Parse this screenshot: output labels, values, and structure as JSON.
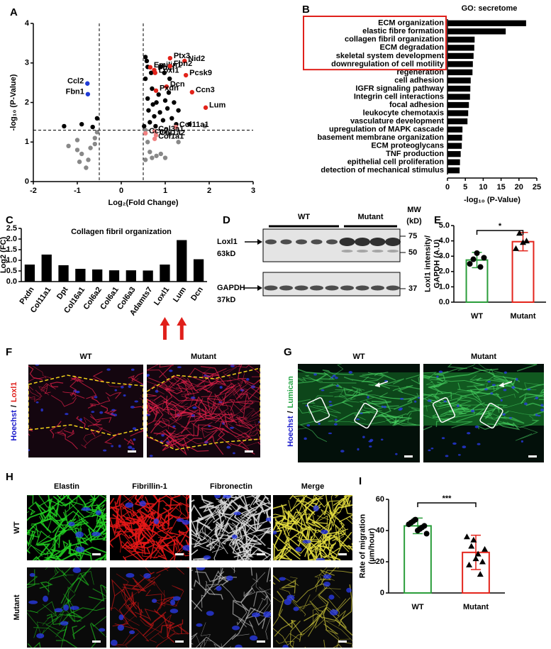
{
  "panels": {
    "letters": [
      "A",
      "B",
      "C",
      "D",
      "E",
      "F",
      "G",
      "H",
      "I"
    ]
  },
  "chart_data": [
    {
      "type": "scatter",
      "xlabel": "Log₂(Fold Change)",
      "ylabel": "-log₁₀ (P-Value)",
      "xlim": [
        -2,
        3
      ],
      "xticks": [
        -2,
        -1,
        0,
        1,
        2,
        3
      ],
      "ylim": [
        0,
        4
      ],
      "yticks": [
        0,
        1,
        2,
        3,
        4
      ],
      "threshold_x": [
        -0.5,
        0.5
      ],
      "threshold_y": 1.3,
      "series": [
        {
          "color": "#000000",
          "x": [
            0.55,
            0.6,
            0.62,
            0.65,
            0.7,
            0.72,
            0.75,
            0.8,
            0.85,
            0.88,
            0.9,
            0.95,
            1.0,
            1.05,
            1.1,
            1.15,
            1.2,
            1.25,
            1.3,
            0.58,
            0.68,
            0.98,
            1.08,
            0.52,
            0.78,
            0.6,
            -1.3,
            -0.55,
            -0.9,
            -0.65,
            0.55,
            1.55
          ],
          "y": [
            2.6,
            2.1,
            1.8,
            1.5,
            2.35,
            1.95,
            1.65,
            2.0,
            2.2,
            1.75,
            2.9,
            1.55,
            2.05,
            1.85,
            2.6,
            1.6,
            2.0,
            1.45,
            1.8,
            3.05,
            2.75,
            2.75,
            2.25,
            1.4,
            1.4,
            2.9,
            1.4,
            1.6,
            1.45,
            1.38,
            3.15,
            1.45
          ]
        },
        {
          "color": "#888888",
          "x": [
            -0.6,
            -0.7,
            -0.75,
            -0.8,
            -0.9,
            -1.0,
            -0.6,
            -1.2,
            -0.55,
            -1.0,
            0.55,
            0.6,
            0.65,
            0.7,
            0.8,
            0.9,
            1.0,
            1.3,
            1.9,
            0.55,
            1.1,
            -0.95
          ],
          "y": [
            1.1,
            0.85,
            0.55,
            0.35,
            0.7,
            0.8,
            0.95,
            0.9,
            1.25,
            1.05,
            1.3,
            1.0,
            0.75,
            0.6,
            0.65,
            0.7,
            0.6,
            1.0,
            1.4,
            0.55,
            1.2,
            0.5
          ]
        },
        {
          "color": "#e2231a",
          "labels": [
            "Ptx3",
            "Nid2",
            "Emilin1",
            "Fbln",
            "Fbn2",
            "Loxl1",
            "Pcsk9",
            "Dcn",
            "Pxdn",
            "Ccn3",
            "Lum"
          ],
          "x": [
            1.11,
            1.44,
            0.66,
            0.75,
            1.11,
            0.77,
            1.47,
            1.03,
            0.79,
            1.61,
            1.92
          ],
          "y": [
            3.12,
            3.05,
            2.89,
            2.82,
            2.92,
            2.75,
            2.69,
            2.4,
            2.3,
            2.26,
            1.87
          ]
        },
        {
          "color": "#1f3bd6",
          "labels": [
            "Ccl2",
            "Fbn1"
          ],
          "x": [
            -0.77,
            -0.76
          ],
          "y": [
            2.48,
            2.21
          ]
        },
        {
          "color": "#f08080",
          "labels": [
            "Col11a1",
            "Col3a1",
            "Col1a2",
            "Col1a1",
            "Ccn2"
          ],
          "x": [
            1.24,
            0.76,
            0.79,
            0.76,
            0.55
          ],
          "y": [
            1.38,
            1.27,
            1.17,
            1.08,
            1.22
          ]
        }
      ]
    },
    {
      "type": "bar",
      "orientation": "horizontal",
      "title": "GO: secretome",
      "xlabel": "-log₁₀ (P-Value)",
      "xlim": [
        0,
        25
      ],
      "xticks": [
        0,
        5,
        10,
        15,
        20,
        25
      ],
      "color": "#000000",
      "highlight_rows": 6,
      "highlight_color": "#e0201b",
      "categories": [
        "ECM organization",
        "elastic fibre formation",
        "collagen fibril organization",
        "ECM degradation",
        "skeletal system development",
        "downregulation of cell motility",
        "regeneration",
        "cell adhesion",
        "IGFR signaling pathway",
        "Integrin cell interactions",
        "focal adhesion",
        "leukocyte chemotaxis",
        "vasculature development",
        "upregulation of MAPK cascade",
        "basement membrane organization",
        "ECM proteoglycans",
        "TNF production",
        "epithelial cell proliferation",
        "detection of mechanical stimulus"
      ],
      "values": [
        22,
        16.3,
        7.6,
        7.5,
        7.3,
        7.1,
        7,
        6.5,
        6.4,
        6.3,
        6,
        5.8,
        5.6,
        4.2,
        4.1,
        4,
        3.7,
        3.5,
        3.4
      ]
    },
    {
      "type": "bar",
      "title": "Collagen fibril organization",
      "ylabel": "Log2 (FC)",
      "ylim": [
        0,
        2.5
      ],
      "yticks": [
        {
          "value": 0,
          "label": "0.0"
        },
        0.5,
        {
          "value": 1,
          "label": "1.0"
        },
        1.5,
        {
          "value": 2,
          "label": "2.0"
        },
        2.5
      ],
      "color": "#000000",
      "arrows": [
        8,
        9
      ],
      "arrow_color": "#e0201b",
      "categories": [
        "Pxdn",
        "Col11a1",
        "Dpt",
        "Col16a1",
        "Col6a2",
        "Col6a1",
        "Col6a3",
        "Adamts7",
        "Loxl1",
        "Lum",
        "Dcn"
      ],
      "values": [
        0.8,
        1.27,
        0.77,
        0.6,
        0.57,
        0.53,
        0.53,
        0.52,
        0.8,
        1.95,
        1.05
      ]
    },
    {
      "type": "bar",
      "ylabel": [
        "Loxl1 intensity/",
        "GAPDH (A.U)"
      ],
      "ylim": [
        0,
        5
      ],
      "yticks": [
        {
          "value": 0,
          "label": "0.0"
        },
        {
          "value": 1,
          "label": "1.0"
        },
        {
          "value": 2,
          "label": "2.0"
        },
        {
          "value": 3,
          "label": "3.0"
        },
        {
          "value": 4,
          "label": "4.0"
        },
        {
          "value": 5,
          "label": "5.0"
        }
      ],
      "categories": [
        "WT",
        "Mutant"
      ],
      "colors": [
        "#2a9d3a",
        "#e3241b"
      ],
      "values": [
        2.75,
        3.95
      ],
      "errors": [
        0.5,
        0.6
      ],
      "points": [
        [
          2.5,
          2.8,
          3.2,
          2.3,
          2.9
        ],
        [
          3.5,
          4.5,
          3.9,
          4.0
        ]
      ],
      "point_markers": [
        "circle",
        "triangle"
      ],
      "significance": "*"
    },
    {
      "type": "bar",
      "ylabel": [
        "Rate of migration",
        "(µm/hour)"
      ],
      "ylim": [
        0,
        60
      ],
      "yticks": [
        0,
        20,
        40,
        60
      ],
      "categories": [
        "WT",
        "Mutant"
      ],
      "colors": [
        "#2a9d3a",
        "#e3241b"
      ],
      "values": [
        43,
        26
      ],
      "errors": [
        5,
        11
      ],
      "points": [
        [
          44,
          46,
          40,
          42,
          38,
          45,
          47,
          41,
          43
        ],
        [
          36,
          30,
          22,
          12,
          28,
          18,
          34,
          25,
          20
        ]
      ],
      "point_markers": [
        "circle",
        "triangle"
      ],
      "significance": "***"
    }
  ],
  "blot": {
    "groups": [
      "WT",
      "Mutant"
    ],
    "mw_title": [
      "MW",
      "(kD)"
    ],
    "mw_markers": [
      75,
      50,
      37
    ],
    "bands": [
      {
        "name": "Loxl1",
        "size": "63kD"
      },
      {
        "name": "GAPDH",
        "size": "37kD"
      }
    ]
  },
  "staining_f": {
    "conditions": [
      "WT",
      "Mutant"
    ],
    "stain_label": [
      "Hoechst",
      "/",
      "Loxl1"
    ]
  },
  "staining_g": {
    "conditions": [
      "WT",
      "Mutant"
    ],
    "stain_label": [
      "Hoechst",
      "/",
      "Lumican"
    ]
  },
  "staining_h": {
    "markers": [
      "Elastin",
      "Fibrillin-1",
      "Fibronectin",
      "Merge"
    ],
    "conditions": [
      "WT",
      "Mutant"
    ]
  }
}
